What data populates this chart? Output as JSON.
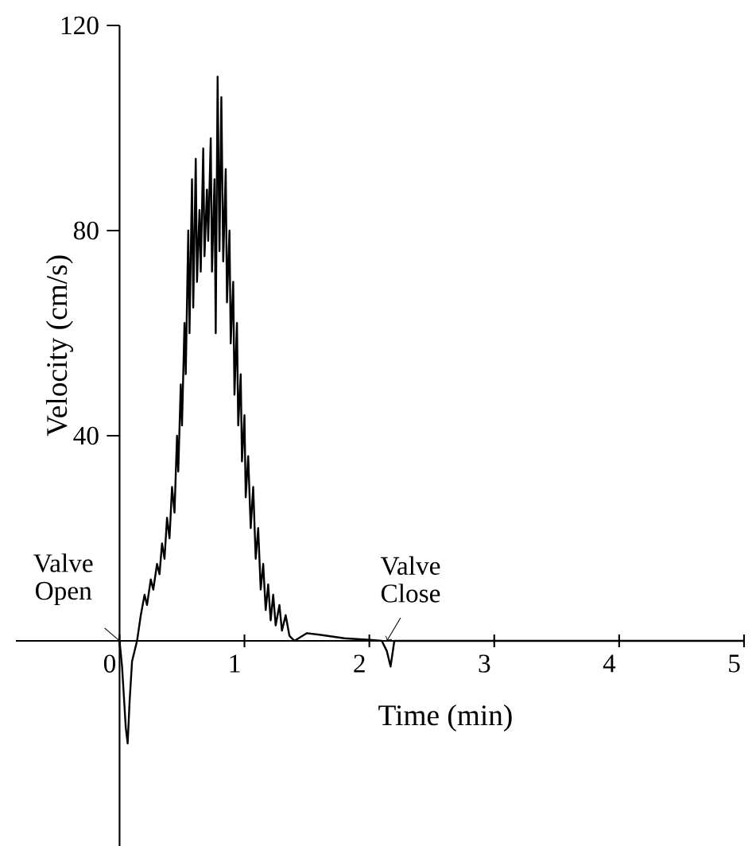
{
  "chart_data": {
    "type": "line",
    "xlabel": "Time (min)",
    "ylabel": "Velocity (cm/s)",
    "xlim": [
      -0.83,
      5
    ],
    "ylim": [
      -40,
      120
    ],
    "xticks": [
      0,
      1,
      2,
      3,
      4,
      5
    ],
    "yticks": [
      40,
      80,
      120
    ],
    "series": [
      {
        "color": "#000000",
        "x": [
          0,
          0.02,
          0.05,
          0.065,
          0.08,
          0.1,
          0.14,
          0.17,
          0.2,
          0.22,
          0.25,
          0.27,
          0.3,
          0.32,
          0.34,
          0.36,
          0.38,
          0.4,
          0.42,
          0.44,
          0.46,
          0.47,
          0.49,
          0.5,
          0.52,
          0.53,
          0.55,
          0.56,
          0.58,
          0.59,
          0.61,
          0.62,
          0.64,
          0.65,
          0.67,
          0.68,
          0.7,
          0.71,
          0.73,
          0.74,
          0.76,
          0.77,
          0.785,
          0.8,
          0.815,
          0.83,
          0.85,
          0.86,
          0.88,
          0.89,
          0.91,
          0.92,
          0.94,
          0.95,
          0.97,
          0.98,
          1.0,
          1.01,
          1.03,
          1.05,
          1.07,
          1.09,
          1.11,
          1.13,
          1.15,
          1.17,
          1.19,
          1.21,
          1.23,
          1.25,
          1.28,
          1.3,
          1.33,
          1.36,
          1.4,
          1.5,
          1.6,
          1.8,
          2.0,
          2.1,
          2.14,
          2.17,
          2.2,
          2.6,
          5
        ],
        "values": [
          0,
          -5,
          -17,
          -20,
          -12,
          -4,
          0,
          5,
          9,
          7,
          12,
          10,
          15,
          13,
          19,
          16,
          24,
          20,
          30,
          25,
          40,
          33,
          50,
          42,
          62,
          52,
          80,
          60,
          90,
          65,
          94,
          70,
          84,
          72,
          96,
          75,
          88,
          78,
          98,
          72,
          90,
          60,
          110,
          76,
          106,
          74,
          92,
          66,
          80,
          58,
          70,
          48,
          62,
          42,
          52,
          35,
          44,
          28,
          36,
          22,
          30,
          16,
          22,
          10,
          15,
          6,
          11,
          4,
          9,
          3,
          7,
          2,
          5,
          1,
          0,
          1.5,
          1.2,
          0.5,
          0.2,
          0,
          -2,
          -5,
          0,
          0,
          0
        ]
      }
    ],
    "annotations": [
      {
        "text": "Valve Open",
        "x": 0,
        "y": 0
      },
      {
        "text": "Valve Close",
        "x": 2.14,
        "y": 0
      }
    ]
  }
}
